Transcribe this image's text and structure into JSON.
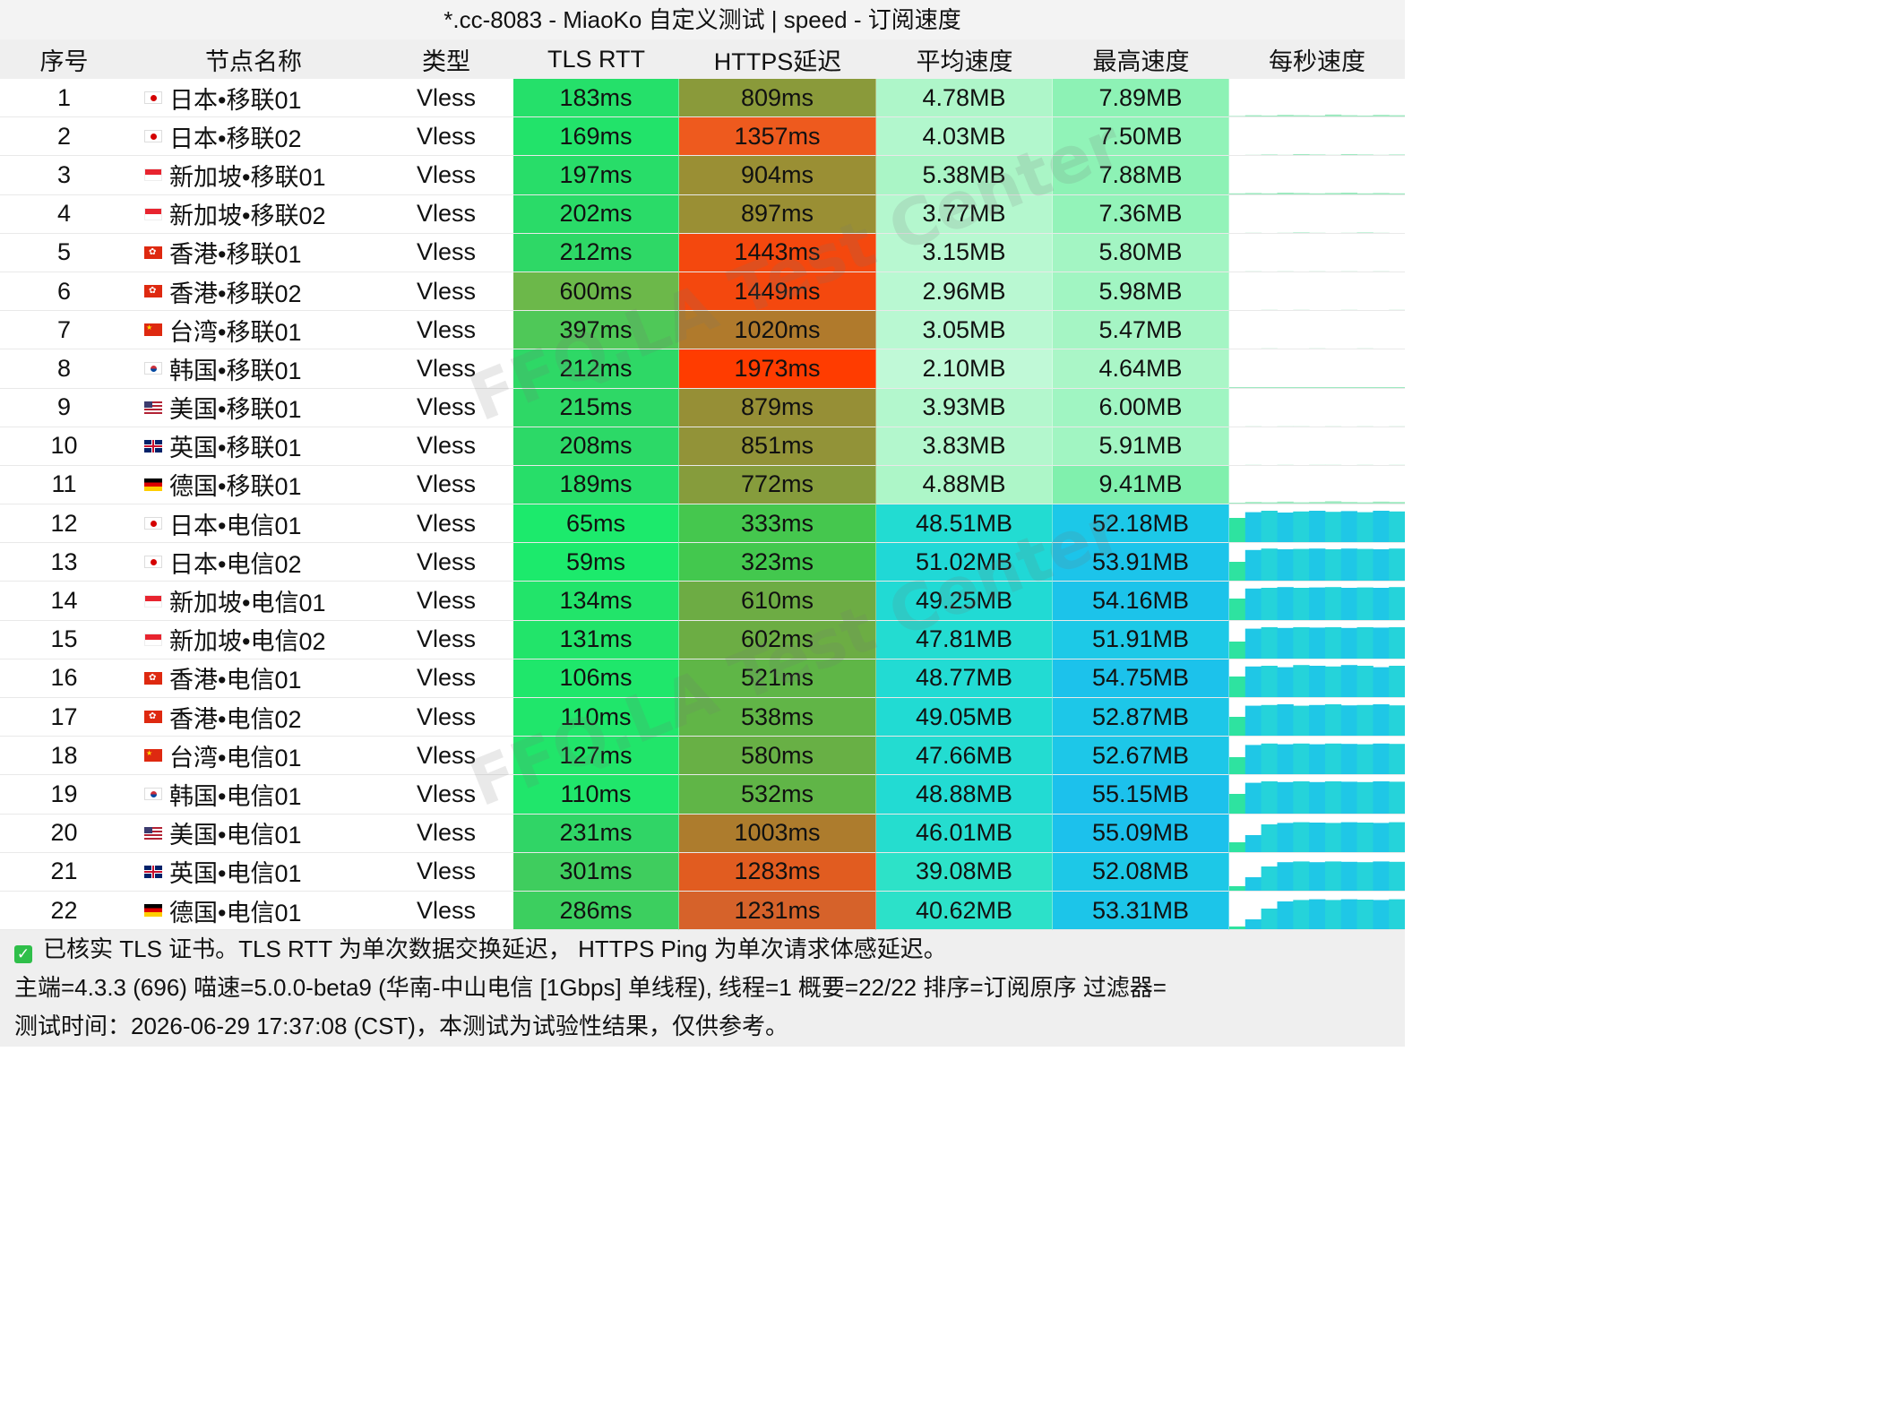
{
  "title": "*.cc-8083 - MiaoKo 自定义测试 | speed - 订阅速度",
  "columns": [
    "序号",
    "节点名称",
    "类型",
    "TLS RTT",
    "HTTPS延迟",
    "平均速度",
    "最高速度",
    "每秒速度"
  ],
  "rows": [
    {
      "idx": "1",
      "flag": "jp",
      "name": "日本•移联01",
      "type": "Vless",
      "tls": "183ms",
      "https": "809ms",
      "avg": "4.78MB",
      "max": "7.89MB",
      "tls_color": "#25e06a",
      "https_color": "#8a9a3a",
      "avg_color": "#aef6c9",
      "max_color": "#8df2b5",
      "spark": [
        0.04,
        0.06,
        0.05,
        0.07,
        0.06,
        0.05,
        0.08,
        0.06,
        0.05,
        0.07,
        0.06
      ]
    },
    {
      "idx": "2",
      "flag": "jp",
      "name": "日本•移联02",
      "type": "Vless",
      "tls": "169ms",
      "https": "1357ms",
      "avg": "4.03MB",
      "max": "7.50MB",
      "tls_color": "#22e36a",
      "https_color": "#ee5a1e",
      "avg_color": "#b2f7cd",
      "max_color": "#91f3b8",
      "spark": [
        0.02,
        0.03,
        0.04,
        0.03,
        0.05,
        0.04,
        0.03,
        0.05,
        0.04,
        0.03,
        0.04
      ]
    },
    {
      "idx": "3",
      "flag": "sg",
      "name": "新加坡•移联01",
      "type": "Vless",
      "tls": "197ms",
      "https": "904ms",
      "avg": "5.38MB",
      "max": "7.88MB",
      "tls_color": "#28dd69",
      "https_color": "#9a8f34",
      "avg_color": "#aaf5c6",
      "max_color": "#8df2b5",
      "spark": [
        0.03,
        0.04,
        0.03,
        0.05,
        0.04,
        0.03,
        0.04,
        0.05,
        0.03,
        0.04,
        0.03
      ]
    },
    {
      "idx": "4",
      "flag": "sg",
      "name": "新加坡•移联02",
      "type": "Vless",
      "tls": "202ms",
      "https": "897ms",
      "avg": "3.77MB",
      "max": "7.36MB",
      "tls_color": "#2adb68",
      "https_color": "#9a8f34",
      "avg_color": "#b4f7ce",
      "max_color": "#93f3b9",
      "spark": [
        0.02,
        0.03,
        0.02,
        0.03,
        0.04,
        0.03,
        0.02,
        0.03,
        0.04,
        0.03,
        0.02
      ]
    },
    {
      "idx": "5",
      "flag": "hk",
      "name": "香港•移联01",
      "type": "Vless",
      "tls": "212ms",
      "https": "1443ms",
      "avg": "3.15MB",
      "max": "5.80MB",
      "tls_color": "#2ed866",
      "https_color": "#f4480e",
      "avg_color": "#b8f8d1",
      "max_color": "#a3f5c3",
      "spark": [
        0.02,
        0.03,
        0.02,
        0.03,
        0.02,
        0.03,
        0.02,
        0.03,
        0.02,
        0.03,
        0.02
      ]
    },
    {
      "idx": "6",
      "flag": "hk",
      "name": "香港•移联02",
      "type": "Vless",
      "tls": "600ms",
      "https": "1449ms",
      "avg": "2.96MB",
      "max": "5.98MB",
      "tls_color": "#6cb84a",
      "https_color": "#f4480e",
      "avg_color": "#b9f8d2",
      "max_color": "#a1f5c2",
      "spark": [
        0.02,
        0.02,
        0.03,
        0.02,
        0.03,
        0.02,
        0.02,
        0.03,
        0.02,
        0.02,
        0.03
      ]
    },
    {
      "idx": "7",
      "flag": "cn",
      "name": "台湾•移联01",
      "type": "Vless",
      "tls": "397ms",
      "https": "1020ms",
      "avg": "3.05MB",
      "max": "5.47MB",
      "tls_color": "#4fc858",
      "https_color": "#b07a2c",
      "avg_color": "#b9f8d2",
      "max_color": "#a5f5c4",
      "spark": [
        0.02,
        0.02,
        0.03,
        0.02,
        0.02,
        0.03,
        0.02,
        0.02,
        0.03,
        0.02,
        0.02
      ]
    },
    {
      "idx": "8",
      "flag": "kr",
      "name": "韩国•移联01",
      "type": "Vless",
      "tls": "212ms",
      "https": "1973ms",
      "avg": "2.10MB",
      "max": "4.64MB",
      "tls_color": "#2ed866",
      "https_color": "#ff3c00",
      "avg_color": "#c0f9d7",
      "max_color": "#aaf6c7",
      "spark": [
        0.01,
        0.02,
        0.01,
        0.02,
        0.02,
        0.01,
        0.02,
        0.01,
        0.02,
        0.01,
        0.02
      ]
    },
    {
      "idx": "9",
      "flag": "us",
      "name": "美国•移联01",
      "type": "Vless",
      "tls": "215ms",
      "https": "879ms",
      "avg": "3.93MB",
      "max": "6.00MB",
      "tls_color": "#2ed866",
      "https_color": "#968f36",
      "avg_color": "#b3f7cd",
      "max_color": "#a0f5c2",
      "spark": [
        0.02,
        0.03,
        0.02,
        0.03,
        0.03,
        0.02,
        0.03,
        0.02,
        0.03,
        0.02,
        0.03
      ]
    },
    {
      "idx": "10",
      "flag": "gb",
      "name": "英国•移联01",
      "type": "Vless",
      "tls": "208ms",
      "https": "851ms",
      "avg": "3.83MB",
      "max": "5.91MB",
      "tls_color": "#2cd967",
      "https_color": "#929338",
      "avg_color": "#b3f7cd",
      "max_color": "#a1f5c2",
      "spark": [
        0.02,
        0.03,
        0.02,
        0.03,
        0.02,
        0.03,
        0.03,
        0.02,
        0.03,
        0.02,
        0.03
      ]
    },
    {
      "idx": "11",
      "flag": "de",
      "name": "德国•移联01",
      "type": "Vless",
      "tls": "189ms",
      "https": "772ms",
      "avg": "4.88MB",
      "max": "9.41MB",
      "tls_color": "#27de69",
      "https_color": "#869c3c",
      "avg_color": "#adf6c8",
      "max_color": "#80f0ad",
      "spark": [
        0.05,
        0.07,
        0.06,
        0.08,
        0.06,
        0.07,
        0.09,
        0.07,
        0.06,
        0.08,
        0.07
      ]
    },
    {
      "idx": "12",
      "flag": "jp",
      "name": "日本•电信01",
      "type": "Vless",
      "tls": "65ms",
      "https": "333ms",
      "avg": "48.51MB",
      "max": "52.18MB",
      "tls_color": "#1cea6c",
      "https_color": "#45c74e",
      "avg_color": "#22dcd2",
      "max_color": "#1cc8e8",
      "spark": [
        0.7,
        0.86,
        0.9,
        0.85,
        0.88,
        0.9,
        0.87,
        0.89,
        0.86,
        0.9,
        0.88
      ]
    },
    {
      "idx": "13",
      "flag": "jp",
      "name": "日本•电信02",
      "type": "Vless",
      "tls": "59ms",
      "https": "323ms",
      "avg": "51.02MB",
      "max": "53.91MB",
      "tls_color": "#1cea6c",
      "https_color": "#43c84e",
      "avg_color": "#20d8d6",
      "max_color": "#1cc4ea",
      "spark": [
        0.55,
        0.88,
        0.92,
        0.9,
        0.91,
        0.92,
        0.9,
        0.92,
        0.91,
        0.9,
        0.92
      ]
    },
    {
      "idx": "14",
      "flag": "sg",
      "name": "新加坡•电信01",
      "type": "Vless",
      "tls": "134ms",
      "https": "610ms",
      "avg": "49.25MB",
      "max": "54.16MB",
      "tls_color": "#22e46a",
      "https_color": "#6dac44",
      "avg_color": "#21dad4",
      "max_color": "#1cc3ea",
      "spark": [
        0.6,
        0.88,
        0.9,
        0.92,
        0.9,
        0.91,
        0.92,
        0.9,
        0.91,
        0.9,
        0.92
      ]
    },
    {
      "idx": "15",
      "flag": "sg",
      "name": "新加坡•电信02",
      "type": "Vless",
      "tls": "131ms",
      "https": "602ms",
      "avg": "47.81MB",
      "max": "51.91MB",
      "tls_color": "#22e46a",
      "https_color": "#6cad44",
      "avg_color": "#23dcd1",
      "max_color": "#1dc9e7",
      "spark": [
        0.5,
        0.86,
        0.9,
        0.88,
        0.9,
        0.89,
        0.9,
        0.88,
        0.9,
        0.89,
        0.9
      ]
    },
    {
      "idx": "16",
      "flag": "hk",
      "name": "香港•电信01",
      "type": "Vless",
      "tls": "106ms",
      "https": "521ms",
      "avg": "48.77MB",
      "max": "54.75MB",
      "tls_color": "#1fe76b",
      "https_color": "#5fb647",
      "avg_color": "#22dbd3",
      "max_color": "#1cc2eb",
      "spark": [
        0.6,
        0.88,
        0.9,
        0.86,
        0.92,
        0.9,
        0.88,
        0.92,
        0.9,
        0.86,
        0.9
      ]
    },
    {
      "idx": "17",
      "flag": "hk",
      "name": "香港•电信02",
      "type": "Vless",
      "tls": "110ms",
      "https": "538ms",
      "avg": "49.05MB",
      "max": "52.87MB",
      "tls_color": "#20e66b",
      "https_color": "#61b547",
      "avg_color": "#21dbd3",
      "max_color": "#1dc7e8",
      "spark": [
        0.55,
        0.86,
        0.88,
        0.9,
        0.86,
        0.88,
        0.9,
        0.87,
        0.88,
        0.9,
        0.87
      ]
    },
    {
      "idx": "18",
      "flag": "cn",
      "name": "台湾•电信01",
      "type": "Vless",
      "tls": "127ms",
      "https": "580ms",
      "avg": "47.66MB",
      "max": "52.67MB",
      "tls_color": "#21e56a",
      "https_color": "#68b045",
      "avg_color": "#23dcd1",
      "max_color": "#1dc7e8",
      "spark": [
        0.5,
        0.84,
        0.88,
        0.86,
        0.88,
        0.86,
        0.88,
        0.87,
        0.86,
        0.88,
        0.87
      ]
    },
    {
      "idx": "19",
      "flag": "kr",
      "name": "韩国•电信01",
      "type": "Vless",
      "tls": "110ms",
      "https": "532ms",
      "avg": "48.88MB",
      "max": "55.15MB",
      "tls_color": "#20e66b",
      "https_color": "#60b547",
      "avg_color": "#22dbd3",
      "max_color": "#1cc1ec",
      "spark": [
        0.55,
        0.86,
        0.9,
        0.88,
        0.9,
        0.88,
        0.9,
        0.89,
        0.88,
        0.9,
        0.89
      ]
    },
    {
      "idx": "20",
      "flag": "us",
      "name": "美国•电信01",
      "type": "Vless",
      "tls": "231ms",
      "https": "1003ms",
      "avg": "46.01MB",
      "max": "55.09MB",
      "tls_color": "#30d566",
      "https_color": "#ad7c2d",
      "avg_color": "#25ddcf",
      "max_color": "#1cc1ec",
      "spark": [
        0.3,
        0.5,
        0.8,
        0.84,
        0.86,
        0.85,
        0.84,
        0.86,
        0.85,
        0.84,
        0.86
      ]
    },
    {
      "idx": "21",
      "flag": "gb",
      "name": "英国•电信01",
      "type": "Vless",
      "tls": "301ms",
      "https": "1283ms",
      "avg": "39.08MB",
      "max": "52.08MB",
      "tls_color": "#3fcd5e",
      "https_color": "#e15c20",
      "avg_color": "#2de2c8",
      "max_color": "#1dc8e7",
      "spark": [
        0.15,
        0.4,
        0.7,
        0.82,
        0.84,
        0.82,
        0.84,
        0.83,
        0.82,
        0.84,
        0.83
      ]
    },
    {
      "idx": "22",
      "flag": "de",
      "name": "德国•电信01",
      "type": "Vless",
      "tls": "286ms",
      "https": "1231ms",
      "avg": "40.62MB",
      "max": "53.31MB",
      "tls_color": "#3ccf5f",
      "https_color": "#d6622a",
      "avg_color": "#2ce1c9",
      "max_color": "#1cc5e9",
      "spark": [
        0.1,
        0.3,
        0.6,
        0.8,
        0.84,
        0.86,
        0.84,
        0.86,
        0.85,
        0.84,
        0.86
      ]
    }
  ],
  "footer": {
    "line1": "已核实 TLS 证书。TLS RTT 为单次数据交换延迟， HTTPS Ping 为单次请求体感延迟。",
    "line2": "主端=4.3.3 (696) 喵速=5.0.0-beta9 (华南-中山电信 [1Gbps] 单线程), 线程=1 概要=22/22 排序=订阅原序 过滤器=",
    "line3": "测试时间：2026-06-29 17:37:08 (CST)，本测试为试验性结果，仅供参考。"
  },
  "watermark": "FFQ.LA Test Center",
  "icons": {
    "check": "check-icon"
  }
}
